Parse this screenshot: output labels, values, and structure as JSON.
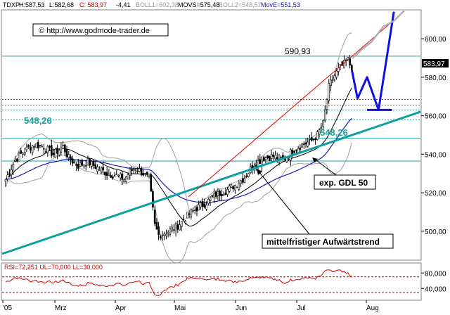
{
  "header": {
    "symbol": "TDXP",
    "high": "H:587,53",
    "low": "L:582,68",
    "close": "C: 583,97",
    "change": "-4,41",
    "boll1": "BOLL1=602,38",
    "movs": "MOVS=575,48",
    "boll2": "BOLL2=548,57",
    "move": "MovE=551,53"
  },
  "copyright": "© http://www.godmode-trader.de",
  "last_price": "583,97",
  "rsi_header": "RSI=72,251 UL=70,000 LL=30,000",
  "colors": {
    "candle_body": "#000000",
    "boll": "#000000",
    "ema": "#1a1ab0",
    "uptrend": "#0aa0a0",
    "resistance_red": "#dd0000",
    "forecast": "#1010e0",
    "levels": "#1e9e9e",
    "rsi_line": "#cc0000"
  },
  "annotations": {
    "level_590": "590,93",
    "level_548_left": "548,26",
    "level_548_right": "548,26",
    "gdl_label": "exp. GDL 50",
    "trend_label": "mittelfristiger Aufwärtstrend"
  },
  "chart_data": {
    "type": "candlestick",
    "y_range": [
      485,
      615
    ],
    "y_ticks": [
      "600,00",
      "580,00",
      "560,00",
      "540,00",
      "520,00",
      "500,00"
    ],
    "x_ticks": [
      "'05",
      "Mrz",
      "Apr",
      "Mai",
      "Jun",
      "Jul",
      "Aug"
    ],
    "horizontal_levels": [
      590.93,
      568.5,
      565.5,
      563.0,
      558.0,
      548.26,
      536.5
    ],
    "close_anchors": [
      [
        0,
        527
      ],
      [
        5,
        537
      ],
      [
        10,
        542
      ],
      [
        15,
        545
      ],
      [
        20,
        544
      ],
      [
        25,
        540
      ],
      [
        30,
        544
      ],
      [
        33,
        538
      ],
      [
        38,
        534
      ],
      [
        43,
        536
      ],
      [
        48,
        533
      ],
      [
        53,
        530
      ],
      [
        58,
        529
      ],
      [
        62,
        527
      ],
      [
        65,
        531
      ],
      [
        68,
        533
      ],
      [
        72,
        530
      ],
      [
        75,
        527
      ],
      [
        78,
        503
      ],
      [
        80,
        498
      ],
      [
        85,
        500
      ],
      [
        90,
        503
      ],
      [
        95,
        508
      ],
      [
        100,
        512
      ],
      [
        105,
        515
      ],
      [
        110,
        519
      ],
      [
        115,
        521
      ],
      [
        120,
        524
      ],
      [
        125,
        528
      ],
      [
        130,
        535
      ],
      [
        135,
        538
      ],
      [
        140,
        539
      ],
      [
        145,
        537
      ],
      [
        150,
        542
      ],
      [
        155,
        545
      ],
      [
        160,
        547
      ],
      [
        163,
        550
      ],
      [
        166,
        556
      ],
      [
        169,
        575
      ],
      [
        172,
        581
      ],
      [
        175,
        585
      ],
      [
        179,
        589
      ],
      [
        181,
        584
      ]
    ],
    "forecast_path": [
      [
        181,
        584
      ],
      [
        184,
        569
      ],
      [
        189,
        580
      ],
      [
        195,
        563
      ],
      [
        203,
        614
      ]
    ],
    "forecast_support_line": [
      [
        189,
        563
      ],
      [
        202,
        563
      ]
    ],
    "rsi": {
      "ll": 30,
      "ul": 70,
      "last": 72.251,
      "ticks": [
        "80,000",
        "40,000"
      ]
    }
  }
}
